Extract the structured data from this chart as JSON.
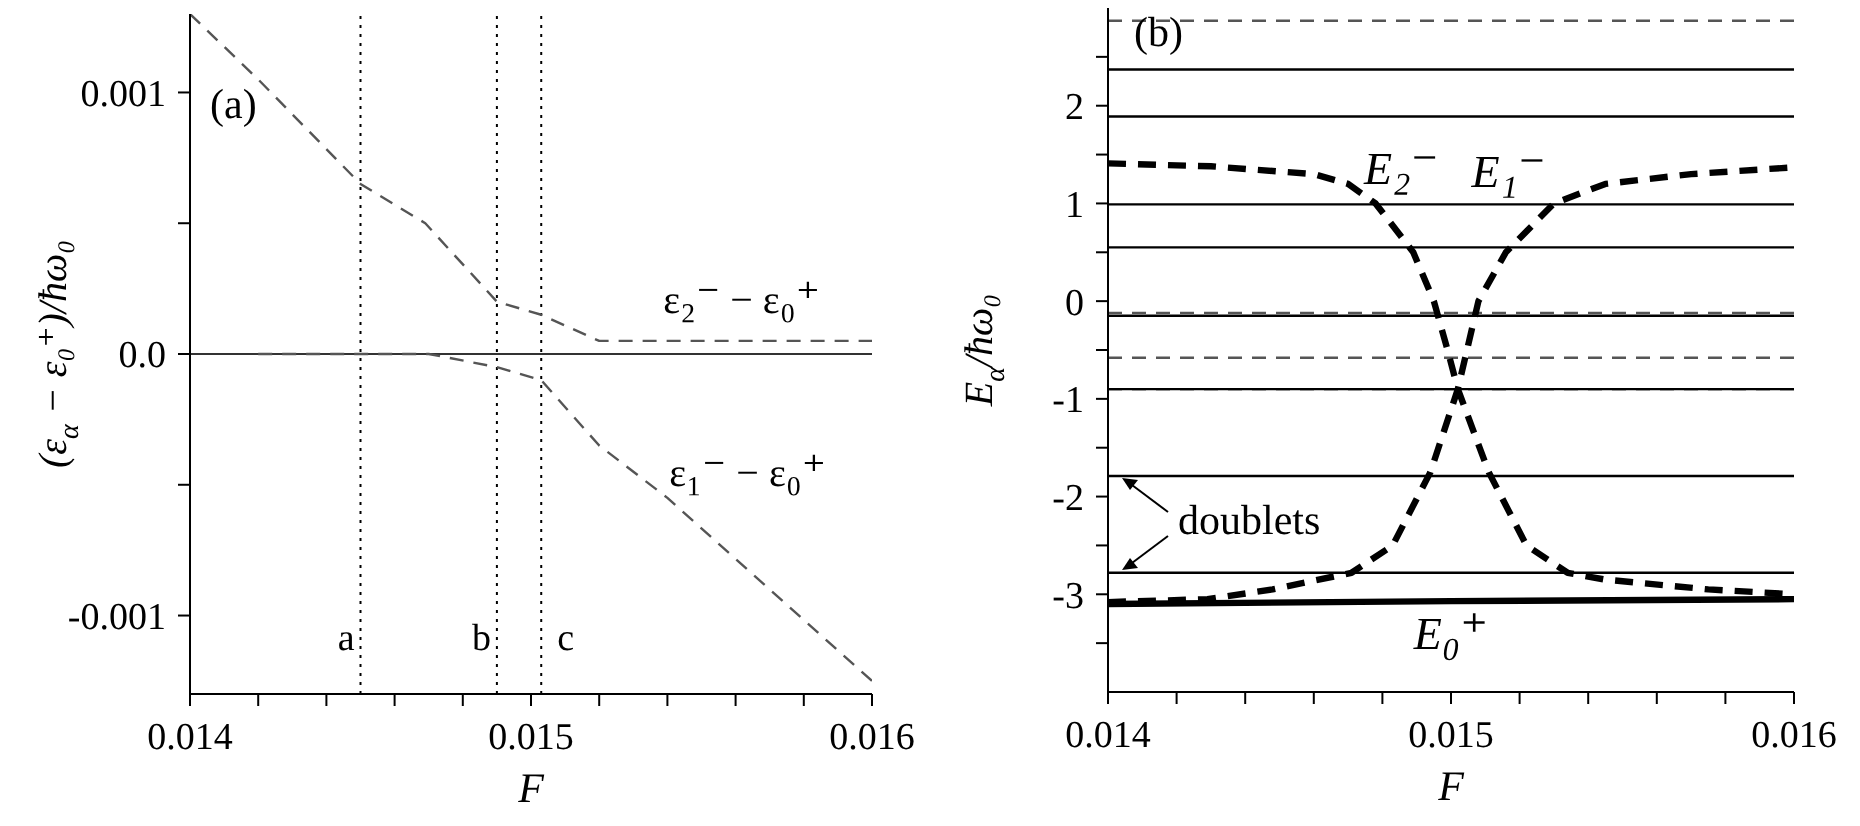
{
  "chart_data": [
    {
      "type": "line",
      "annotations": [
        "(a)"
      ],
      "xlabel": "F",
      "ylabel": "(ε$_{α}$ − ε₀⁺)/ħω₀",
      "xlim": [
        0.014,
        0.016
      ],
      "ylim": [
        -0.0013,
        0.0013
      ],
      "xticks": [
        0.014,
        {
          "value": 0.0142,
          "label": null
        },
        {
          "value": 0.0144,
          "label": null
        },
        {
          "value": 0.0146,
          "label": null
        },
        {
          "value": 0.0148,
          "label": null
        },
        0.015,
        {
          "value": 0.0152,
          "label": null
        },
        {
          "value": 0.0154,
          "label": null
        },
        {
          "value": 0.0156,
          "label": null
        },
        {
          "value": 0.0158,
          "label": null
        },
        0.016
      ],
      "yticks": [
        -0.001,
        {
          "value": -0.0005,
          "label": null
        },
        {
          "value": 0,
          "label": "0.0"
        },
        {
          "value": 0.0005,
          "label": null
        },
        0.001
      ],
      "grid": false,
      "marker": "none",
      "ref_lines": [
        {
          "axis": "x",
          "value": 0.0145,
          "label": "a",
          "line_style": "dotted",
          "color": "#000000"
        },
        {
          "axis": "x",
          "value": 0.0149,
          "label": "b",
          "line_style": "dotted",
          "color": "#000000"
        },
        {
          "axis": "x",
          "value": 0.01503,
          "label": "c",
          "line_style": "dotted",
          "color": "#000000"
        },
        {
          "axis": "y",
          "value": 0,
          "line_style": "solid",
          "color": "#333333"
        }
      ],
      "series": [
        {
          "name": "ε₂⁻ − ε₀⁺",
          "color": "#555555",
          "line_style": "dashed",
          "x": [
            0.014,
            0.0142,
            0.0145,
            0.01469,
            0.0149,
            0.01503,
            0.0152,
            0.0154,
            0.016
          ],
          "values": [
            0.0013,
            0.00105,
            0.00065,
            0.0005,
            0.0002,
            0.00015,
            5e-05,
            5e-05,
            5e-05
          ]
        },
        {
          "name": "ε₁⁻ − ε₀⁺",
          "color": "#555555",
          "line_style": "dashed",
          "x": [
            0.0142,
            0.0145,
            0.0147,
            0.0149,
            0.01503,
            0.0152,
            0.0154,
            0.016
          ],
          "values": [
            0,
            0,
            0,
            -5e-05,
            -0.0001,
            -0.00035,
            -0.00055,
            -0.00125
          ]
        }
      ]
    },
    {
      "type": "line",
      "annotations": [
        "(b)",
        "doublets"
      ],
      "xlabel": "F",
      "ylabel": "E$_{α}$/ħω₀",
      "xlim": [
        0.014,
        0.016
      ],
      "ylim": [
        -4,
        3
      ],
      "xticks": [
        0.014,
        {
          "value": 0.0142,
          "label": null
        },
        {
          "value": 0.0144,
          "label": null
        },
        {
          "value": 0.0146,
          "label": null
        },
        {
          "value": 0.0148,
          "label": null
        },
        0.015,
        {
          "value": 0.0152,
          "label": null
        },
        {
          "value": 0.0154,
          "label": null
        },
        {
          "value": 0.0156,
          "label": null
        },
        {
          "value": 0.0158,
          "label": null
        },
        0.016
      ],
      "yticks": [
        {
          "value": -3.5,
          "label": null
        },
        -3,
        {
          "value": -2.5,
          "label": null
        },
        -2,
        {
          "value": -1.5,
          "label": null
        },
        -1,
        {
          "value": -0.5,
          "label": null
        },
        0,
        {
          "value": 0.5,
          "label": null
        },
        1,
        {
          "value": 1.5,
          "label": null
        },
        2,
        {
          "value": 2.5,
          "label": null
        }
      ],
      "grid": false,
      "marker": "none",
      "series": [
        {
          "color": "#555555",
          "line_style": "dashed",
          "x": [
            0.014,
            0.016
          ],
          "values": [
            2.87,
            2.87
          ]
        },
        {
          "color": "#000000",
          "line_style": "solid",
          "x": [
            0.014,
            0.016
          ],
          "values": [
            2.37,
            2.37
          ]
        },
        {
          "color": "#000000",
          "line_style": "solid",
          "x": [
            0.014,
            0.016
          ],
          "values": [
            1.89,
            1.89
          ]
        },
        {
          "color": "#000000",
          "line_style": "solid",
          "x": [
            0.014,
            0.016
          ],
          "values": [
            0.99,
            0.99
          ]
        },
        {
          "color": "#000000",
          "line_style": "solid",
          "x": [
            0.014,
            0.016
          ],
          "values": [
            0.55,
            0.55
          ]
        },
        {
          "color": "#555555",
          "line_style": "dashed",
          "x": [
            0.014,
            0.016
          ],
          "values": [
            -0.12,
            -0.12
          ]
        },
        {
          "color": "#000000",
          "line_style": "solid",
          "x": [
            0.014,
            0.016
          ],
          "values": [
            -0.15,
            -0.15
          ]
        },
        {
          "color": "#555555",
          "line_style": "dashed",
          "x": [
            0.014,
            0.016
          ],
          "values": [
            -0.58,
            -0.58
          ]
        },
        {
          "color": "#000000",
          "line_style": "solid",
          "x": [
            0.014,
            0.016
          ],
          "values": [
            -0.9,
            -0.9
          ]
        },
        {
          "color": "#000000",
          "line_style": "dashed",
          "x": [
            0.014,
            0.016
          ],
          "values": [
            -0.9,
            -0.9
          ]
        },
        {
          "color": "#000000",
          "line_style": "solid",
          "x": [
            0.014,
            0.016
          ],
          "values": [
            -1.79,
            -1.79
          ]
        },
        {
          "color": "#000000",
          "line_style": "solid",
          "x": [
            0.014,
            0.016
          ],
          "values": [
            -2.78,
            -2.78
          ]
        },
        {
          "name": "E₂⁻",
          "color": "#000000",
          "line_style": "dashed",
          "x": [
            0.014,
            0.0143,
            0.0146,
            0.0147,
            0.01478,
            0.01489,
            0.01495,
            0.01499,
            0.01502,
            0.01511,
            0.01522,
            0.01534,
            0.01545,
            0.01575,
            0.016
          ],
          "values": [
            1.41,
            1.38,
            1.3,
            1.2,
            1.0,
            0.5,
            0,
            -0.5,
            -0.9,
            -1.75,
            -2.5,
            -2.78,
            -2.85,
            -2.95,
            -3.0
          ]
        },
        {
          "name": "E₁⁻",
          "color": "#000000",
          "line_style": "dashed",
          "x": [
            0.014,
            0.01429,
            0.01448,
            0.01471,
            0.01483,
            0.01494,
            0.01502,
            0.01508,
            0.01516,
            0.0153,
            0.01545,
            0.0157,
            0.016
          ],
          "values": [
            -3.08,
            -3.05,
            -2.95,
            -2.78,
            -2.5,
            -1.75,
            -0.9,
            0,
            0.5,
            1.0,
            1.2,
            1.3,
            1.37
          ]
        },
        {
          "name": "E₀⁺",
          "color": "#000000",
          "line_style": "solid",
          "x": [
            0.014,
            0.015,
            0.016
          ],
          "values": [
            -3.1,
            -3.07,
            -3.05
          ]
        }
      ]
    }
  ]
}
